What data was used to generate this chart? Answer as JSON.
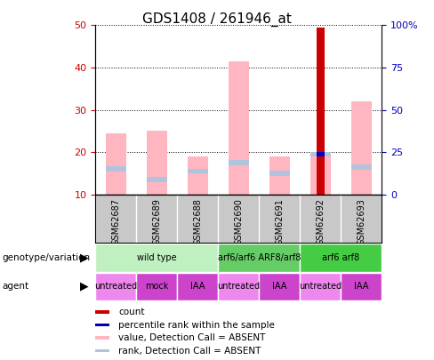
{
  "title": "GDS1408 / 261946_at",
  "samples": [
    "GSM62687",
    "GSM62689",
    "GSM62688",
    "GSM62690",
    "GSM62691",
    "GSM62692",
    "GSM62693"
  ],
  "pink_bar_top": [
    24.5,
    25.0,
    19.0,
    41.5,
    19.0,
    19.5,
    32.0
  ],
  "pink_bar_bottom": [
    10,
    10,
    10,
    10,
    10,
    10,
    10
  ],
  "lightblue_bar_value": [
    16.0,
    13.5,
    15.5,
    17.5,
    15.0,
    19.5,
    16.5
  ],
  "lightblue_bar_height": [
    1.2,
    1.2,
    1.2,
    1.2,
    1.2,
    1.2,
    1.2
  ],
  "red_bar_heights": [
    0,
    0,
    0,
    0,
    0,
    39.5,
    0
  ],
  "blue_dot_sample": 5,
  "blue_dot_value": 19.5,
  "ylim_left": [
    10,
    50
  ],
  "yticks_left": [
    10,
    20,
    30,
    40,
    50
  ],
  "ytick_labels_right": [
    "0",
    "25",
    "50",
    "75",
    "100%"
  ],
  "pink_color": "#FFB6C1",
  "lightblue_color": "#B0C4DE",
  "red_color": "#CC0000",
  "blue_color": "#0000BB",
  "left_tick_color": "#CC0000",
  "right_tick_color": "#0000BB",
  "bg_color": "#FFFFFF",
  "sample_bg_color": "#C8C8C8",
  "genotype_rows": [
    {
      "label": "wild type",
      "xstart": 0,
      "xend": 2,
      "color": "#C0F0C0"
    },
    {
      "label": "arf6/arf6 ARF8/arf8",
      "xstart": 3,
      "xend": 4,
      "color": "#66CC66"
    },
    {
      "label": "arf6 arf8",
      "xstart": 5,
      "xend": 6,
      "color": "#44CC44"
    }
  ],
  "agent_rows": [
    {
      "label": "untreated",
      "xstart": 0,
      "xend": 0,
      "color": "#EE88EE"
    },
    {
      "label": "mock",
      "xstart": 1,
      "xend": 1,
      "color": "#CC44CC"
    },
    {
      "label": "IAA",
      "xstart": 2,
      "xend": 2,
      "color": "#CC44CC"
    },
    {
      "label": "untreated",
      "xstart": 3,
      "xend": 3,
      "color": "#EE88EE"
    },
    {
      "label": "IAA",
      "xstart": 4,
      "xend": 4,
      "color": "#CC44CC"
    },
    {
      "label": "untreated",
      "xstart": 5,
      "xend": 5,
      "color": "#EE88EE"
    },
    {
      "label": "IAA",
      "xstart": 6,
      "xend": 6,
      "color": "#CC44CC"
    }
  ],
  "legend_items": [
    {
      "label": "count",
      "color": "#CC0000"
    },
    {
      "label": "percentile rank within the sample",
      "color": "#0000BB"
    },
    {
      "label": "value, Detection Call = ABSENT",
      "color": "#FFB6C1"
    },
    {
      "label": "rank, Detection Call = ABSENT",
      "color": "#B0C4DE"
    }
  ],
  "bar_width": 0.5,
  "red_bar_width": 0.18
}
